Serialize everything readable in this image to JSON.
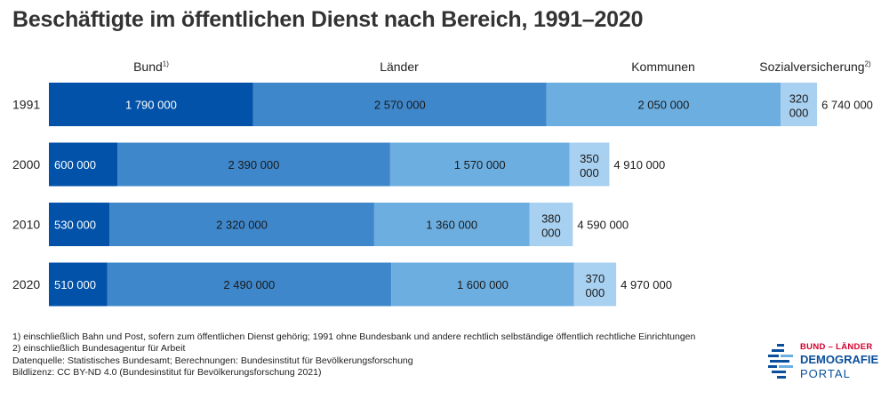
{
  "title": "Beschäftigte im öffentlichen Dienst nach Bereich, 1991–2020",
  "series_labels": {
    "bund": "Bund",
    "bund_note": "1)",
    "laender": "Länder",
    "kommunen": "Kommunen",
    "sozial": "Sozialversicherung",
    "sozial_note": "2)"
  },
  "colors": {
    "bund": "#0152a8",
    "laender": "#3f87cb",
    "kommunen": "#6caee0",
    "sozial": "#a8d0f0"
  },
  "chart_data": {
    "type": "bar",
    "orientation": "horizontal",
    "stacked": true,
    "categories": [
      "1991",
      "2000",
      "2010",
      "2020"
    ],
    "series": [
      {
        "name": "Bund",
        "values": [
          1790000,
          600000,
          530000,
          510000
        ],
        "labels": [
          "1 790 000",
          "600 000",
          "530 000",
          "510 000"
        ]
      },
      {
        "name": "Länder",
        "values": [
          2570000,
          2390000,
          2320000,
          2490000
        ],
        "labels": [
          "2 570 000",
          "2 390 000",
          "2 320 000",
          "2 490 000"
        ]
      },
      {
        "name": "Kommunen",
        "values": [
          2050000,
          1570000,
          1360000,
          1600000
        ],
        "labels": [
          "2 050 000",
          "1 570 000",
          "1 360 000",
          "1 600 000"
        ]
      },
      {
        "name": "Sozialversicherung",
        "values": [
          320000,
          350000,
          380000,
          370000
        ],
        "labels": [
          [
            "320",
            "000"
          ],
          [
            "350",
            "000"
          ],
          [
            "380",
            "000"
          ],
          [
            "370",
            "000"
          ]
        ]
      }
    ],
    "totals": [
      "6 740 000",
      "4 910 000",
      "4 590 000",
      "4 970 000"
    ],
    "legend": "top"
  },
  "footnotes": [
    "1) einschließlich Bahn und Post, sofern zum öffentlichen Dienst gehörig; 1991 ohne Bundesbank und andere rechtlich selbständige öffentlich rechtliche Einrichtungen",
    "2) einschließlich Bundesagentur für Arbeit",
    "Datenquelle: Statistisches Bundesamt; Berechnungen: Bundesinstitut für Bevölkerungsforschung",
    "Bildlizenz: CC BY-ND 4.0 (Bundesinstitut für Bevölkerungsforschung 2021)"
  ],
  "logo": {
    "line1": "BUND – LÄNDER",
    "line2": "DEMOGRAFIE",
    "line3": "PORTAL",
    "icon": "demografie-portal-logo-icon"
  }
}
